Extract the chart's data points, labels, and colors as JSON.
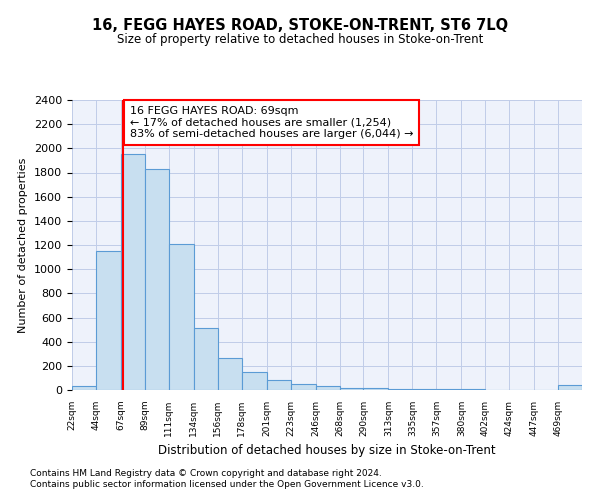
{
  "title": "16, FEGG HAYES ROAD, STOKE-ON-TRENT, ST6 7LQ",
  "subtitle": "Size of property relative to detached houses in Stoke-on-Trent",
  "xlabel": "Distribution of detached houses by size in Stoke-on-Trent",
  "ylabel": "Number of detached properties",
  "bin_labels": [
    "22sqm",
    "44sqm",
    "67sqm",
    "89sqm",
    "111sqm",
    "134sqm",
    "156sqm",
    "178sqm",
    "201sqm",
    "223sqm",
    "246sqm",
    "268sqm",
    "290sqm",
    "313sqm",
    "335sqm",
    "357sqm",
    "380sqm",
    "402sqm",
    "424sqm",
    "447sqm",
    "469sqm"
  ],
  "bin_edges": [
    22,
    44,
    67,
    89,
    111,
    134,
    156,
    178,
    201,
    223,
    246,
    268,
    290,
    313,
    335,
    357,
    380,
    402,
    424,
    447,
    469,
    491
  ],
  "values": [
    30,
    1150,
    1950,
    1830,
    1210,
    510,
    265,
    145,
    85,
    50,
    35,
    20,
    15,
    10,
    8,
    6,
    5,
    4,
    3,
    3,
    40
  ],
  "bar_color": "#c8dff0",
  "bar_edge_color": "#5b9bd5",
  "red_line_x": 69,
  "annotation_title": "16 FEGG HAYES ROAD: 69sqm",
  "annotation_line1": "← 17% of detached houses are smaller (1,254)",
  "annotation_line2": "83% of semi-detached houses are larger (6,044) →",
  "ylim": [
    0,
    2400
  ],
  "yticks": [
    0,
    200,
    400,
    600,
    800,
    1000,
    1200,
    1400,
    1600,
    1800,
    2000,
    2200,
    2400
  ],
  "footnote1": "Contains HM Land Registry data © Crown copyright and database right 2024.",
  "footnote2": "Contains public sector information licensed under the Open Government Licence v3.0.",
  "bg_color": "#eef2fb",
  "grid_color": "#c0cce8"
}
